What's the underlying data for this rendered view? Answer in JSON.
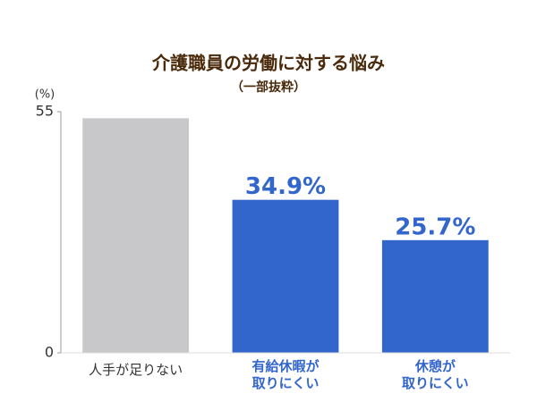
{
  "chart_data": {
    "type": "bar",
    "title": "介護職員の労働に対する悩み",
    "subtitle": "（一部抜粋）",
    "y_unit": "(%)",
    "categories": [
      "人手が足りない",
      "有給休暇が\n取りにくい",
      "休憩が\n取りにくい"
    ],
    "values": [
      53.5,
      34.9,
      25.7
    ],
    "value_labels": [
      null,
      "34.9%",
      "25.7%"
    ],
    "colors": [
      "#c8c8ca",
      "#3366cc",
      "#3366cc"
    ],
    "ylim": [
      0,
      55
    ],
    "yticks": [
      0,
      55
    ],
    "grid": false
  }
}
